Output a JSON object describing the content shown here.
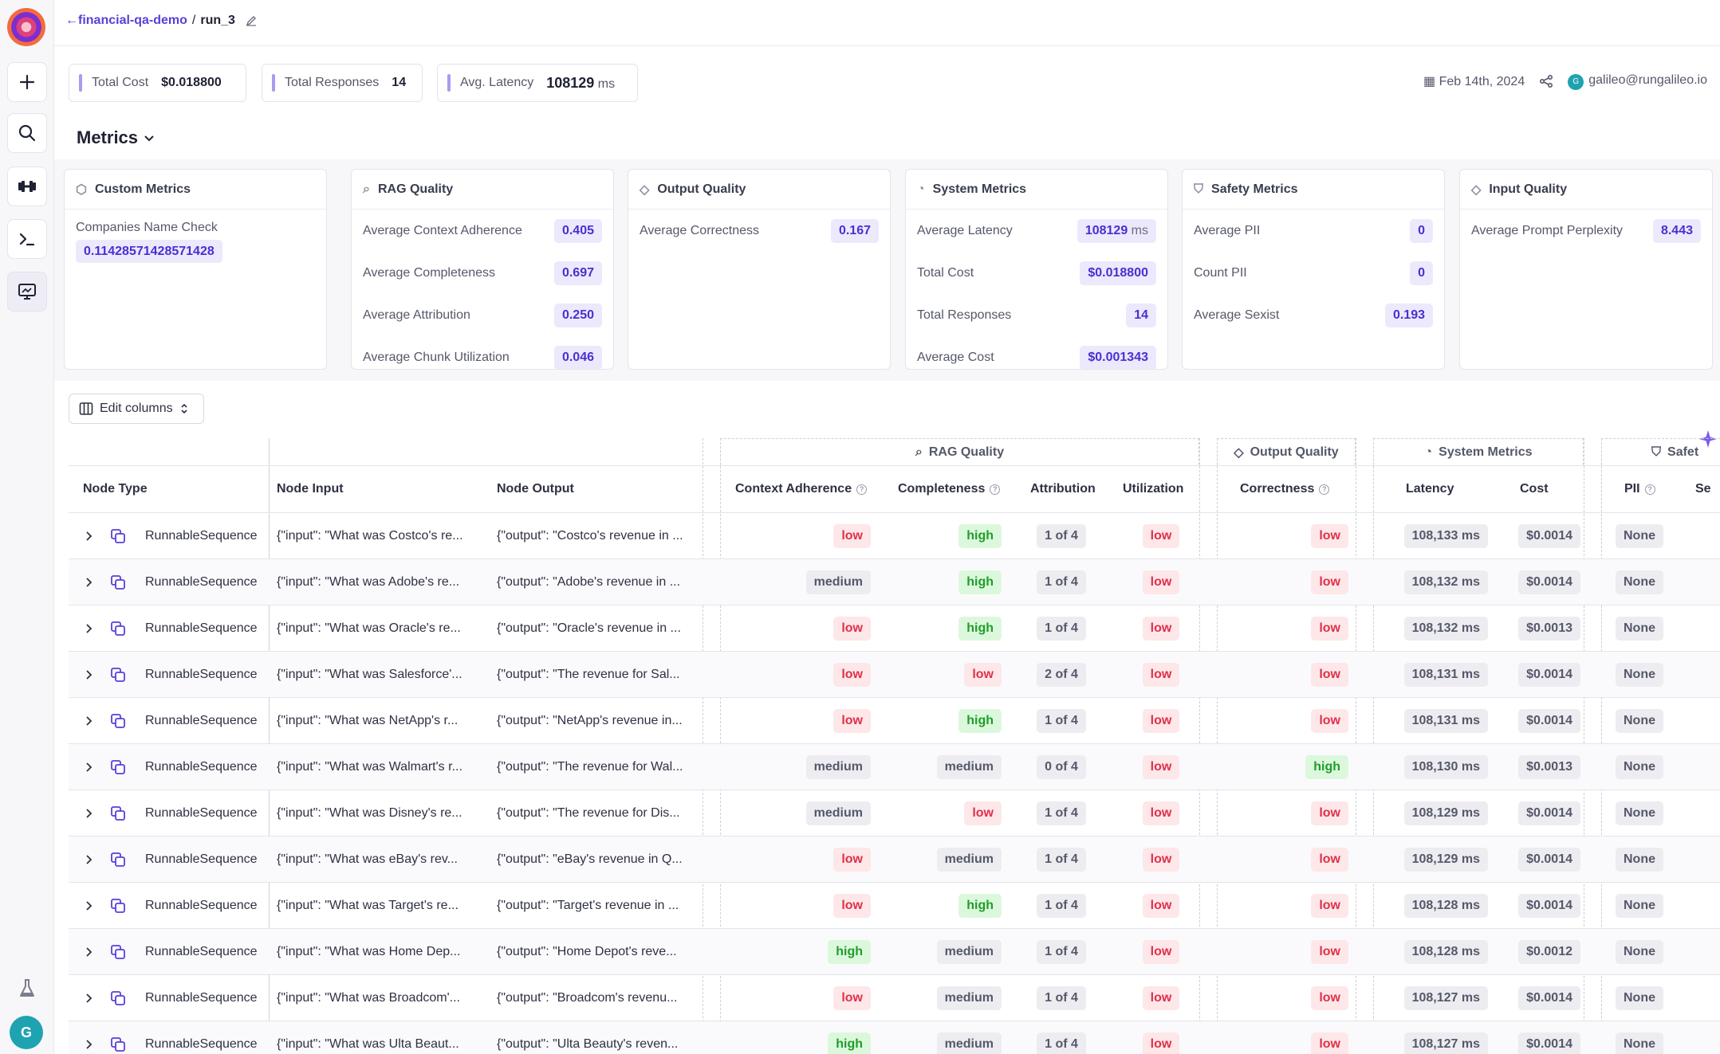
{
  "breadcrumb": {
    "project": "financial-qa-demo",
    "separator": "/",
    "run": "run_3"
  },
  "stats": [
    {
      "label": "Total Cost",
      "value": "$0.018800",
      "unit": ""
    },
    {
      "label": "Total Responses",
      "value": "14",
      "unit": ""
    },
    {
      "label": "Avg. Latency",
      "value": "108129",
      "unit": "ms"
    }
  ],
  "meta": {
    "date": "Feb 14th, 2024",
    "user_initial": "G",
    "user_email": "galileo@rungalileo.io"
  },
  "metrics_title": "Metrics",
  "cards": [
    {
      "title": "Custom Metrics",
      "icon": "puzzle-icon",
      "rows": [
        {
          "label": "Companies Name Check",
          "value": "0.11428571428571428",
          "unit": ""
        }
      ]
    },
    {
      "title": "RAG Quality",
      "icon": "search-doc-icon",
      "rows": [
        {
          "label": "Average Context Adherence",
          "value": "0.405",
          "unit": ""
        },
        {
          "label": "Average Completeness",
          "value": "0.697",
          "unit": ""
        },
        {
          "label": "Average Attribution",
          "value": "0.250",
          "unit": ""
        },
        {
          "label": "Average Chunk Utilization",
          "value": "0.046",
          "unit": ""
        }
      ]
    },
    {
      "title": "Output Quality",
      "icon": "diamond-icon",
      "rows": [
        {
          "label": "Average Correctness",
          "value": "0.167",
          "unit": ""
        }
      ]
    },
    {
      "title": "System Metrics",
      "icon": "gauge-icon",
      "rows": [
        {
          "label": "Average Latency",
          "value": "108129",
          "unit": "ms"
        },
        {
          "label": "Total Cost",
          "value": "$0.018800",
          "unit": ""
        },
        {
          "label": "Total Responses",
          "value": "14",
          "unit": ""
        },
        {
          "label": "Average Cost",
          "value": "$0.001343",
          "unit": ""
        }
      ]
    },
    {
      "title": "Safety Metrics",
      "icon": "shield-icon",
      "rows": [
        {
          "label": "Average PII",
          "value": "0",
          "unit": ""
        },
        {
          "label": "Count PII",
          "value": "0",
          "unit": ""
        },
        {
          "label": "Average Sexist",
          "value": "0.193",
          "unit": ""
        }
      ]
    },
    {
      "title": "Input Quality",
      "icon": "diamond-icon",
      "rows": [
        {
          "label": "Average Prompt Perplexity",
          "value": "8.443",
          "unit": ""
        }
      ]
    }
  ],
  "edit_columns_label": "Edit columns",
  "groups": [
    {
      "label": "RAG Quality",
      "icon": "search-doc-icon"
    },
    {
      "label": "Output Quality",
      "icon": "diamond-icon"
    },
    {
      "label": "System Metrics",
      "icon": "gauge-icon"
    },
    {
      "label": "Safet",
      "icon": "shield-icon"
    }
  ],
  "columns": [
    "Node Type",
    "Node Input",
    "Node Output",
    "Context Adherence",
    "Completeness",
    "Attribution",
    "Utilization",
    "Correctness",
    "Latency",
    "Cost",
    "PII",
    "Se"
  ],
  "rows": [
    {
      "type": "RunnableSequence",
      "input": "{\"input\": \"What was Costco's re...",
      "output": "{\"output\": \"Costco's revenue in ...",
      "ctx": "low",
      "comp": "high",
      "attr": "1 of 4",
      "util": "low",
      "corr": "low",
      "lat": "108,133 ms",
      "cost": "$0.0014",
      "pii": "None"
    },
    {
      "type": "RunnableSequence",
      "input": "{\"input\": \"What was Adobe's re...",
      "output": "{\"output\": \"Adobe's revenue in ...",
      "ctx": "medium",
      "comp": "high",
      "attr": "1 of 4",
      "util": "low",
      "corr": "low",
      "lat": "108,132 ms",
      "cost": "$0.0014",
      "pii": "None"
    },
    {
      "type": "RunnableSequence",
      "input": "{\"input\": \"What was Oracle's re...",
      "output": "{\"output\": \"Oracle's revenue in ...",
      "ctx": "low",
      "comp": "high",
      "attr": "1 of 4",
      "util": "low",
      "corr": "low",
      "lat": "108,132 ms",
      "cost": "$0.0013",
      "pii": "None"
    },
    {
      "type": "RunnableSequence",
      "input": "{\"input\": \"What was Salesforce'...",
      "output": "{\"output\": \"The revenue for Sal...",
      "ctx": "low",
      "comp": "low",
      "attr": "2 of 4",
      "util": "low",
      "corr": "low",
      "lat": "108,131 ms",
      "cost": "$0.0014",
      "pii": "None"
    },
    {
      "type": "RunnableSequence",
      "input": "{\"input\": \"What was NetApp's r...",
      "output": "{\"output\": \"NetApp's revenue in...",
      "ctx": "low",
      "comp": "high",
      "attr": "1 of 4",
      "util": "low",
      "corr": "low",
      "lat": "108,131 ms",
      "cost": "$0.0014",
      "pii": "None"
    },
    {
      "type": "RunnableSequence",
      "input": "{\"input\": \"What was Walmart's r...",
      "output": "{\"output\": \"The revenue for Wal...",
      "ctx": "medium",
      "comp": "medium",
      "attr": "0 of 4",
      "util": "low",
      "corr": "high",
      "lat": "108,130 ms",
      "cost": "$0.0013",
      "pii": "None"
    },
    {
      "type": "RunnableSequence",
      "input": "{\"input\": \"What was Disney's re...",
      "output": "{\"output\": \"The revenue for Dis...",
      "ctx": "medium",
      "comp": "low",
      "attr": "1 of 4",
      "util": "low",
      "corr": "low",
      "lat": "108,129 ms",
      "cost": "$0.0014",
      "pii": "None"
    },
    {
      "type": "RunnableSequence",
      "input": "{\"input\": \"What was eBay's rev...",
      "output": "{\"output\": \"eBay's revenue in Q...",
      "ctx": "low",
      "comp": "medium",
      "attr": "1 of 4",
      "util": "low",
      "corr": "low",
      "lat": "108,129 ms",
      "cost": "$0.0014",
      "pii": "None"
    },
    {
      "type": "RunnableSequence",
      "input": "{\"input\": \"What was Target's re...",
      "output": "{\"output\": \"Target's revenue in ...",
      "ctx": "low",
      "comp": "high",
      "attr": "1 of 4",
      "util": "low",
      "corr": "low",
      "lat": "108,128 ms",
      "cost": "$0.0014",
      "pii": "None"
    },
    {
      "type": "RunnableSequence",
      "input": "{\"input\": \"What was Home Dep...",
      "output": "{\"output\": \"Home Depot's reve...",
      "ctx": "high",
      "comp": "medium",
      "attr": "1 of 4",
      "util": "low",
      "corr": "low",
      "lat": "108,128 ms",
      "cost": "$0.0012",
      "pii": "None"
    },
    {
      "type": "RunnableSequence",
      "input": "{\"input\": \"What was Broadcom'...",
      "output": "{\"output\": \"Broadcom's revenu...",
      "ctx": "low",
      "comp": "medium",
      "attr": "1 of 4",
      "util": "low",
      "corr": "low",
      "lat": "108,127 ms",
      "cost": "$0.0014",
      "pii": "None"
    },
    {
      "type": "RunnableSequence",
      "input": "{\"input\": \"What was Ulta Beaut...",
      "output": "{\"output\": \"Ulta Beauty's reven...",
      "ctx": "high",
      "comp": "medium",
      "attr": "1 of 4",
      "util": "low",
      "corr": "low",
      "lat": "108,127 ms",
      "cost": "$0.0014",
      "pii": "None"
    }
  ]
}
